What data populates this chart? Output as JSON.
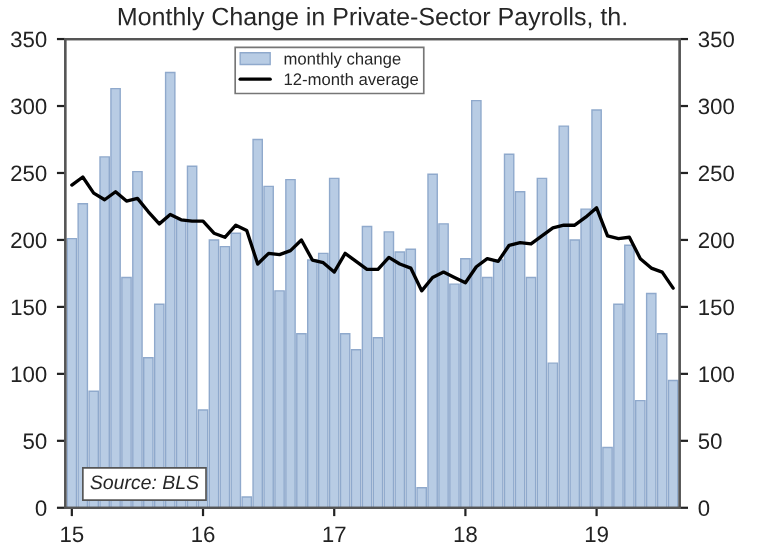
{
  "chart_data": {
    "type": "bar",
    "title": "Monthly Change in Private-Sector Payrolls, th.",
    "categories": [
      "15",
      null,
      null,
      null,
      null,
      null,
      null,
      null,
      null,
      null,
      null,
      null,
      "16",
      null,
      null,
      null,
      null,
      null,
      null,
      null,
      null,
      null,
      null,
      null,
      "17",
      null,
      null,
      null,
      null,
      null,
      null,
      null,
      null,
      null,
      null,
      null,
      "18",
      null,
      null,
      null,
      null,
      null,
      null,
      null,
      null,
      null,
      null,
      null,
      "19",
      null,
      null,
      null,
      null,
      null,
      null,
      null
    ],
    "series": [
      {
        "name": "monthly change",
        "color": "#b8cce4",
        "values": [
          201,
          227,
          87,
          262,
          313,
          172,
          251,
          112,
          152,
          325,
          215,
          255,
          73,
          200,
          195,
          205,
          8,
          275,
          240,
          162,
          245,
          130,
          185,
          190,
          246,
          130,
          118,
          210,
          127,
          206,
          191,
          193,
          15,
          249,
          212,
          167,
          186,
          304,
          172,
          185,
          264,
          236,
          172,
          246,
          108,
          285,
          200,
          223,
          297,
          45,
          152,
          196,
          80,
          160,
          130,
          95
        ]
      },
      {
        "name": "12-month average",
        "type": "line",
        "color": "#000000",
        "values": [
          241,
          247,
          235,
          230,
          236,
          229,
          231,
          221,
          212,
          219,
          215,
          214,
          214,
          205,
          202,
          211,
          207,
          182,
          190,
          189,
          192,
          200,
          185,
          183,
          176,
          190,
          184,
          178,
          178,
          187,
          182,
          179,
          162,
          172,
          176,
          172,
          168,
          180,
          186,
          184,
          196,
          198,
          197,
          203,
          209,
          211,
          211,
          217,
          224,
          203,
          201,
          202,
          186,
          179,
          176,
          164
        ]
      }
    ],
    "ylim": [
      0,
      350
    ],
    "yticks": [
      0,
      50,
      100,
      150,
      200,
      250,
      300,
      350
    ],
    "y2lim": [
      0,
      350
    ],
    "y2ticks": [
      0,
      50,
      100,
      150,
      200,
      250,
      300,
      350
    ],
    "annotations": [
      "Source: BLS"
    ],
    "legend": "top",
    "grid": false,
    "marker": "none",
    "line_style": "solid"
  }
}
